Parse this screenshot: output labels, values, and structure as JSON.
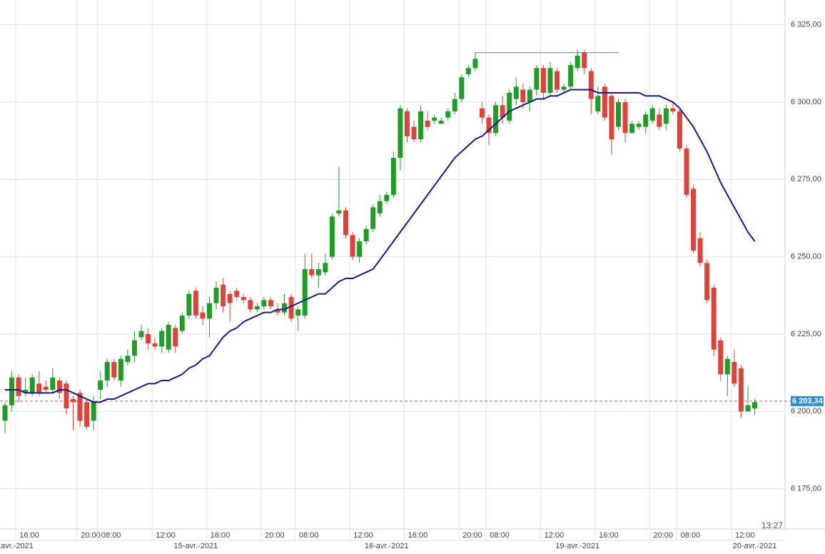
{
  "chart_data": {
    "type": "candlestick",
    "up_color": "#1f9e27",
    "down_color": "#e0423a",
    "ylim": [
      6162,
      6333
    ],
    "yticks": [
      {
        "value": 6175,
        "label": "6 175,00"
      },
      {
        "value": 6200,
        "label": "6 200,00"
      },
      {
        "value": 6225,
        "label": "6 225,00"
      },
      {
        "value": 6250,
        "label": "6 250,00"
      },
      {
        "value": 6275,
        "label": "6 275,00"
      },
      {
        "value": 6300,
        "label": "6 300,00"
      },
      {
        "value": 6325,
        "label": "6 325,00"
      }
    ],
    "grid": true,
    "categories": [
      null,
      null,
      "16:00",
      null,
      null,
      null,
      null,
      null,
      null,
      null,
      null,
      "20:00",
      null,
      null,
      "08:00",
      null,
      null,
      null,
      null,
      null,
      null,
      null,
      "12:00",
      null,
      null,
      null,
      null,
      null,
      null,
      null,
      "16:00",
      null,
      null,
      null,
      null,
      null,
      null,
      null,
      "20:00",
      null,
      null,
      null,
      null,
      "08:00",
      null,
      null,
      null,
      null,
      null,
      null,
      null,
      "12:00",
      null,
      null,
      null,
      null,
      null,
      null,
      null,
      "16:00",
      null,
      null,
      null,
      null,
      null,
      null,
      null,
      "20:00",
      null,
      null,
      null,
      "08:00",
      null,
      null,
      null,
      null,
      null,
      null,
      null,
      "12:00",
      null,
      null,
      null,
      null,
      null,
      null,
      null,
      "16:00",
      null,
      null,
      null,
      null,
      null,
      null,
      null,
      "20:00",
      null,
      null,
      null,
      "08:00",
      null,
      null,
      null,
      null,
      null,
      null,
      null,
      "12:00",
      null,
      null,
      null
    ],
    "dates": [
      null,
      "avr.-2021",
      null,
      null,
      null,
      null,
      null,
      null,
      null,
      null,
      null,
      null,
      null,
      null,
      null,
      null,
      null,
      null,
      null,
      null,
      null,
      null,
      null,
      null,
      null,
      null,
      null,
      null,
      "15-avr.-2021",
      null,
      null,
      null,
      null,
      null,
      null,
      null,
      null,
      null,
      null,
      null,
      null,
      null,
      null,
      null,
      null,
      null,
      null,
      null,
      null,
      null,
      null,
      null,
      null,
      null,
      null,
      null,
      "16-avr.-2021",
      null,
      null,
      null,
      null,
      null,
      null,
      null,
      null,
      null,
      null,
      null,
      null,
      null,
      null,
      null,
      null,
      null,
      null,
      null,
      null,
      null,
      null,
      null,
      null,
      null,
      null,
      null,
      "19-avr.-2021",
      null,
      null,
      null,
      null,
      null,
      null,
      null,
      null,
      null,
      null,
      null,
      null,
      null,
      null,
      null,
      null,
      null,
      null,
      null,
      null,
      null,
      null,
      null,
      null,
      null,
      "20-avr.-2021"
    ],
    "ohlc": [
      [
        6197,
        6203,
        6193,
        6202
      ],
      [
        6202,
        6213,
        6200,
        6211
      ],
      [
        6211,
        6212,
        6203,
        6205
      ],
      [
        6206,
        6211,
        6205,
        6207
      ],
      [
        6206,
        6212,
        6205,
        6211
      ],
      [
        6209,
        6213,
        6205,
        6206
      ],
      [
        6208,
        6210,
        6206,
        6207
      ],
      [
        6207,
        6214,
        6206,
        6211
      ],
      [
        6210,
        6211,
        6204,
        6206
      ],
      [
        6209,
        6210,
        6199,
        6201
      ],
      [
        6204,
        6205,
        6194,
        6203
      ],
      [
        6206,
        6207,
        6195,
        6197
      ],
      [
        6203,
        6204,
        6194,
        6195
      ],
      [
        6197,
        6205,
        6194,
        6203
      ],
      [
        6207,
        6213,
        6204,
        6210
      ],
      [
        6210,
        6217,
        6208,
        6216
      ],
      [
        6216,
        6217,
        6210,
        6211
      ],
      [
        6210,
        6218,
        6208,
        6217
      ],
      [
        6216,
        6220,
        6215,
        6218
      ],
      [
        6218,
        6226,
        6216,
        6223
      ],
      [
        6224,
        6228,
        6223,
        6226
      ],
      [
        6225,
        6227,
        6220,
        6222
      ],
      [
        6222,
        6224,
        6220,
        6221
      ],
      [
        6221,
        6227,
        6219,
        6226
      ],
      [
        6220,
        6229,
        6219,
        6228
      ],
      [
        6227,
        6228,
        6219,
        6221
      ],
      [
        6226,
        6232,
        6225,
        6231
      ],
      [
        6231,
        6239,
        6230,
        6238
      ],
      [
        6239,
        6240,
        6230,
        6231
      ],
      [
        6232,
        6234,
        6228,
        6230
      ],
      [
        6230,
        6237,
        6224,
        6235
      ],
      [
        6235,
        6242,
        6233,
        6240
      ],
      [
        6241,
        6243,
        6232,
        6234
      ],
      [
        6238,
        6239,
        6229,
        6235
      ],
      [
        6239,
        6240,
        6236,
        6237
      ],
      [
        6237,
        6238,
        6235,
        6236
      ],
      [
        6236,
        6237,
        6232,
        6233
      ],
      [
        6233,
        6235,
        6232,
        6234
      ],
      [
        6234,
        6237,
        6233,
        6236
      ],
      [
        6236,
        6237,
        6233,
        6234
      ],
      [
        6233,
        6235,
        6231,
        6232
      ],
      [
        6232,
        6238,
        6231,
        6235
      ],
      [
        6237,
        6238,
        6229,
        6230
      ],
      [
        6231,
        6234,
        6226,
        6233
      ],
      [
        6231,
        6251,
        6230,
        6246
      ],
      [
        6246,
        6251,
        6243,
        6244
      ],
      [
        6244,
        6248,
        6240,
        6246
      ],
      [
        6245,
        6251,
        6244,
        6248
      ],
      [
        6250,
        6264,
        6249,
        6263
      ],
      [
        6264,
        6279,
        6263,
        6265
      ],
      [
        6265,
        6266,
        6256,
        6257
      ],
      [
        6257,
        6258,
        6249,
        6250
      ],
      [
        6250,
        6256,
        6248,
        6255
      ],
      [
        6255,
        6260,
        6254,
        6259
      ],
      [
        6259,
        6267,
        6258,
        6266
      ],
      [
        6264,
        6270,
        6263,
        6268
      ],
      [
        6268,
        6271,
        6267,
        6270
      ],
      [
        6270,
        6284,
        6269,
        6282
      ],
      [
        6282,
        6299,
        6278,
        6298
      ],
      [
        6297,
        6298,
        6287,
        6289
      ],
      [
        6292,
        6294,
        6287,
        6288
      ],
      [
        6288,
        6299,
        6287,
        6297
      ],
      [
        6294,
        6297,
        6291,
        6292
      ],
      [
        6294,
        6296,
        6293,
        6295
      ],
      [
        6293,
        6295,
        6293,
        6294
      ],
      [
        6295,
        6298,
        6294,
        6297
      ],
      [
        6297,
        6303,
        6296,
        6301
      ],
      [
        6301,
        6309,
        6300,
        6308
      ],
      [
        6309,
        6312,
        6308,
        6311
      ],
      [
        6311,
        6316,
        6310,
        6314
      ],
      [
        6298,
        6300,
        6293,
        6295
      ],
      [
        6295,
        6296,
        6286,
        6290
      ],
      [
        6290,
        6300,
        6289,
        6299
      ],
      [
        6299,
        6302,
        6293,
        6295
      ],
      [
        6294,
        6304,
        6293,
        6303
      ],
      [
        6301,
        6308,
        6299,
        6305
      ],
      [
        6304,
        6306,
        6298,
        6300
      ],
      [
        6300,
        6305,
        6297,
        6304
      ],
      [
        6304,
        6312,
        6302,
        6311
      ],
      [
        6311,
        6312,
        6301,
        6303
      ],
      [
        6303,
        6313,
        6302,
        6311
      ],
      [
        6310,
        6311,
        6303,
        6304
      ],
      [
        6304,
        6306,
        6303,
        6305
      ],
      [
        6305,
        6313,
        6304,
        6312
      ],
      [
        6311,
        6317,
        6310,
        6315
      ],
      [
        6316,
        6317,
        6309,
        6311
      ],
      [
        6310,
        6311,
        6296,
        6301
      ],
      [
        6297,
        6305,
        6296,
        6302
      ],
      [
        6305,
        6306,
        6294,
        6295
      ],
      [
        6302,
        6303,
        6283,
        6288
      ],
      [
        6292,
        6301,
        6291,
        6300
      ],
      [
        6300,
        6301,
        6287,
        6290
      ],
      [
        6290,
        6294,
        6290,
        6293
      ],
      [
        6292,
        6294,
        6291,
        6293
      ],
      [
        6292,
        6297,
        6290,
        6296
      ],
      [
        6294,
        6299,
        6293,
        6298
      ],
      [
        6296,
        6298,
        6291,
        6292
      ],
      [
        6293,
        6299,
        6291,
        6298
      ],
      [
        6298,
        6300,
        6296,
        6297
      ],
      [
        6297,
        6298,
        6284,
        6285
      ],
      [
        6285,
        6286,
        6269,
        6270
      ],
      [
        6272,
        6273,
        6251,
        6252
      ],
      [
        6256,
        6258,
        6247,
        6248
      ],
      [
        6248,
        6249,
        6235,
        6236
      ],
      [
        6240,
        6241,
        6218,
        6220
      ],
      [
        6223,
        6224,
        6210,
        6212
      ],
      [
        6212,
        6218,
        6205,
        6217
      ],
      [
        6216,
        6220,
        6208,
        6209
      ],
      [
        6214,
        6215,
        6198,
        6200
      ],
      [
        6200,
        6208,
        6200,
        6202
      ],
      [
        6201,
        6204,
        6199,
        6203
      ]
    ],
    "moving_average": {
      "color": "#141c8a",
      "values": [
        6207,
        6207,
        6207,
        6206,
        6206,
        6206,
        6206,
        6206,
        6207,
        6207,
        6206,
        6205,
        6204,
        6203,
        6203,
        6204,
        6204,
        6205,
        6206,
        6207,
        6208,
        6209,
        6209,
        6210,
        6210,
        6211,
        6212,
        6214,
        6215,
        6217,
        6218,
        6221,
        6224,
        6226,
        6227,
        6229,
        6230,
        6231,
        6232,
        6232,
        6233,
        6233,
        6234,
        6235,
        6236,
        6237,
        6238,
        6238,
        6240,
        6242,
        6243,
        6243,
        6244,
        6245,
        6246,
        6249,
        6252,
        6255,
        6258,
        6261,
        6264,
        6267,
        6270,
        6273,
        6276,
        6279,
        6282,
        6284,
        6286,
        6288,
        6289,
        6291,
        6293,
        6295,
        6297,
        6298,
        6299,
        6300,
        6301,
        6301,
        6302,
        6302,
        6303,
        6304,
        6304,
        6304,
        6304,
        6303,
        6303,
        6303,
        6303,
        6303,
        6303,
        6303,
        6302,
        6302,
        6302,
        6301,
        6300,
        6298,
        6295,
        6292,
        6288,
        6284,
        6279,
        6274,
        6270,
        6266,
        6262,
        6258,
        6255
      ]
    },
    "level": {
      "value": 6316,
      "color": "#4a8fcc"
    },
    "last_price": {
      "value": 6203.34,
      "label": "6 203,34",
      "color": "#d9534f",
      "label_color": "#2b8fd6"
    },
    "time": "13:27"
  }
}
